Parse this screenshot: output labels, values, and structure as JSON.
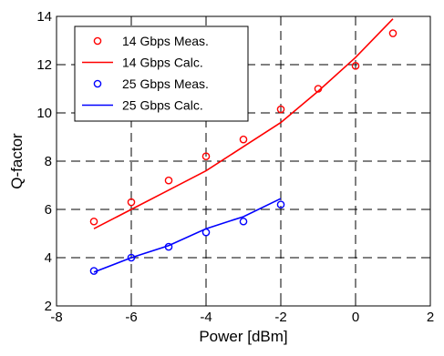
{
  "chart_data": {
    "type": "line",
    "title": "",
    "xlabel": "Power [dBm]",
    "ylabel": "Q-factor",
    "xlim": [
      -8,
      2
    ],
    "ylim": [
      2,
      14
    ],
    "xticks": [
      -8,
      -6,
      -4,
      -2,
      0,
      2
    ],
    "yticks": [
      2,
      4,
      6,
      8,
      10,
      12,
      14
    ],
    "grid": true,
    "grid_style": "dashed",
    "legend_position": "top-left",
    "series": [
      {
        "name": "14 Gbps Meas.",
        "style": "markers",
        "marker": "circle",
        "color": "#ff0000",
        "x": [
          -7,
          -6,
          -5,
          -4,
          -3,
          -2,
          -1,
          0,
          1
        ],
        "y": [
          5.5,
          6.3,
          7.2,
          8.2,
          8.9,
          10.15,
          11.0,
          11.95,
          13.3
        ]
      },
      {
        "name": "14 Gbps Calc.",
        "style": "line",
        "color": "#ff0000",
        "x": [
          -7,
          -6,
          -5,
          -4,
          -3,
          -2,
          -1,
          0,
          1
        ],
        "y": [
          5.2,
          6.0,
          6.8,
          7.6,
          8.6,
          9.6,
          10.9,
          12.3,
          13.9
        ]
      },
      {
        "name": "25 Gbps Meas.",
        "style": "markers",
        "marker": "circle",
        "color": "#0000ff",
        "x": [
          -7,
          -6,
          -5,
          -4,
          -3,
          -2
        ],
        "y": [
          3.45,
          4.0,
          4.45,
          5.05,
          5.5,
          6.2
        ]
      },
      {
        "name": "25 Gbps Calc.",
        "style": "line",
        "color": "#0000ff",
        "x": [
          -7,
          -6,
          -5,
          -4,
          -3,
          -2
        ],
        "y": [
          3.4,
          4.0,
          4.5,
          5.2,
          5.7,
          6.45
        ]
      }
    ]
  }
}
